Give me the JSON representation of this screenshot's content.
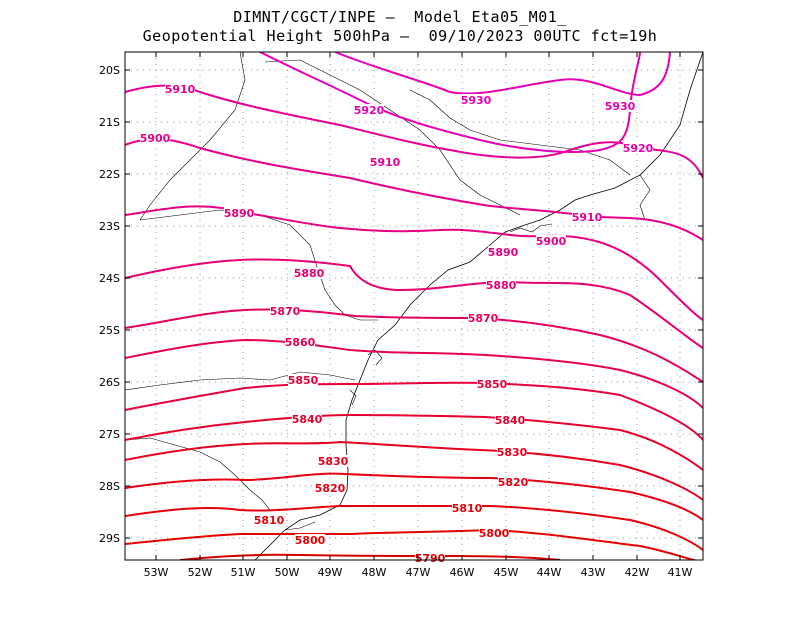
{
  "title": {
    "line1": "DIMNT/CGCT/INPE –  Model Eta05_M01_",
    "line2": "Geopotential Height 500hPa –  09/10/2023 00UTC fct=19h"
  },
  "chart_data": {
    "type": "contour-map",
    "variable": "Geopotential Height 500hPa",
    "units": "gpm",
    "lon_range": [
      -53.6,
      -40.5
    ],
    "lat_range": [
      -29.4,
      -19.9
    ],
    "x_ticks": [
      "53W",
      "52W",
      "51W",
      "50W",
      "49W",
      "48W",
      "47W",
      "46W",
      "45W",
      "44W",
      "43W",
      "42W",
      "41W"
    ],
    "y_ticks": [
      "20S",
      "21S",
      "22S",
      "23S",
      "24S",
      "25S",
      "26S",
      "27S",
      "28S",
      "29S"
    ],
    "grid": "dotted",
    "contours": [
      {
        "value": "5930",
        "color": "#e600b4",
        "labels": [
          "5930",
          "5930"
        ]
      },
      {
        "value": "5920",
        "color": "#e600b4",
        "labels": [
          "5920",
          "5920"
        ]
      },
      {
        "value": "5910",
        "color": "#e60096",
        "labels": [
          "5910",
          "5910",
          "5910"
        ]
      },
      {
        "value": "5900",
        "color": "#e6008c",
        "labels": [
          "5900",
          "5900"
        ]
      },
      {
        "value": "5890",
        "color": "#e60082",
        "labels": [
          "5890",
          "5890"
        ]
      },
      {
        "value": "5880",
        "color": "#e60073",
        "labels": [
          "5880",
          "5880"
        ]
      },
      {
        "value": "5870",
        "color": "#e6005f",
        "labels": [
          "5870",
          "5870"
        ]
      },
      {
        "value": "5860",
        "color": "#e60050",
        "labels": [
          "5860"
        ]
      },
      {
        "value": "5850",
        "color": "#e6003c",
        "labels": [
          "5850",
          "5850"
        ]
      },
      {
        "value": "5840",
        "color": "#e6002d",
        "labels": [
          "5840",
          "5840"
        ]
      },
      {
        "value": "5830",
        "color": "#e6001e",
        "labels": [
          "5830",
          "5830"
        ]
      },
      {
        "value": "5820",
        "color": "#e60014",
        "labels": [
          "5820",
          "5820"
        ]
      },
      {
        "value": "5810",
        "color": "#e6000a",
        "labels": [
          "5810",
          "5810"
        ]
      },
      {
        "value": "5800",
        "color": "#e60000",
        "labels": [
          "5800",
          "5800"
        ]
      },
      {
        "value": "5790",
        "color": "#d60000",
        "labels": [
          "5790"
        ]
      }
    ]
  }
}
